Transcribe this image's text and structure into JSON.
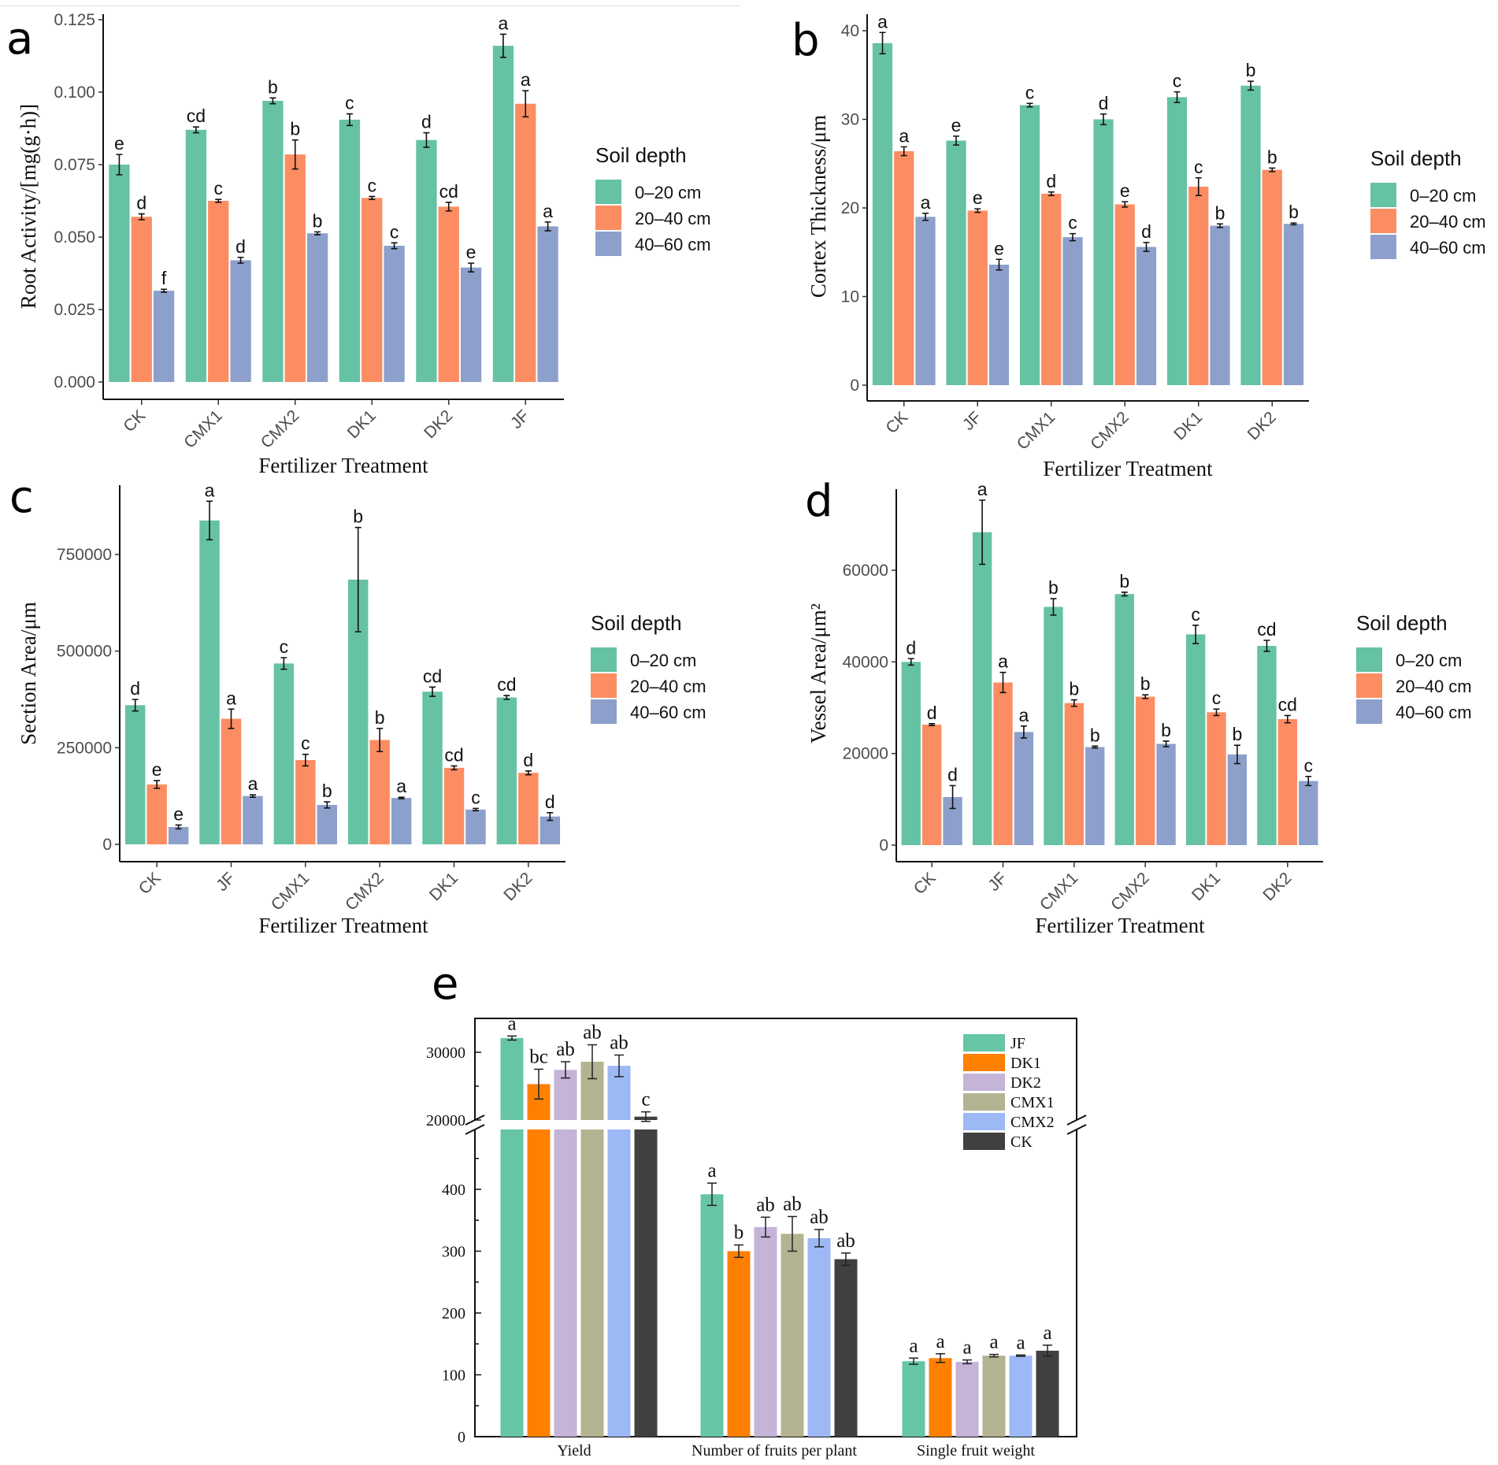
{
  "chart_data": [
    {
      "panel": "a",
      "type": "bar",
      "xlabel": "Fertilizer Treatment",
      "ylabel": "Root Activity/[mg(g·h)]",
      "categories": [
        "CK",
        "CMX1",
        "CMX2",
        "DK1",
        "DK2",
        "JF"
      ],
      "yticks": [
        0,
        0.025,
        0.05,
        0.075,
        0.1,
        0.125
      ],
      "tick_decimals": 3,
      "legend_title": "Soil depth",
      "series": [
        {
          "name": "0–20 cm",
          "color": "#66c2a5",
          "values": [
            0.075,
            0.087,
            0.097,
            0.0905,
            0.0835,
            0.116
          ],
          "errors": [
            0.0035,
            0.001,
            0.001,
            0.002,
            0.0025,
            0.004
          ],
          "letters": [
            "e",
            "cd",
            "b",
            "c",
            "d",
            "a"
          ]
        },
        {
          "name": "20–40 cm",
          "color": "#fc8d62",
          "values": [
            0.057,
            0.0625,
            0.0785,
            0.0635,
            0.0605,
            0.096
          ],
          "errors": [
            0.001,
            0.0005,
            0.005,
            0.0005,
            0.0015,
            0.0045
          ],
          "letters": [
            "d",
            "c",
            "b",
            "c",
            "cd",
            "a"
          ]
        },
        {
          "name": "40–60 cm",
          "color": "#8da0cb",
          "values": [
            0.0315,
            0.042,
            0.0513,
            0.047,
            0.0395,
            0.0537
          ],
          "errors": [
            0.0005,
            0.001,
            0.0005,
            0.001,
            0.0015,
            0.0015
          ],
          "letters": [
            "f",
            "d",
            "b",
            "c",
            "e",
            "a"
          ]
        }
      ]
    },
    {
      "panel": "b",
      "type": "bar",
      "xlabel": "Fertilizer Treatment",
      "ylabel": "Cortex Thickness/μm",
      "categories": [
        "CK",
        "JF",
        "CMX1",
        "CMX2",
        "DK1",
        "DK2"
      ],
      "yticks": [
        0,
        10,
        20,
        30,
        40
      ],
      "tick_decimals": 0,
      "legend_title": "Soil depth",
      "series": [
        {
          "name": "0–20 cm",
          "color": "#66c2a5",
          "values": [
            38.6,
            27.6,
            31.6,
            30.0,
            32.5,
            33.8
          ],
          "errors": [
            1.2,
            0.5,
            0.2,
            0.6,
            0.6,
            0.5
          ],
          "letters": [
            "a",
            "e",
            "c",
            "d",
            "c",
            "b"
          ]
        },
        {
          "name": "20–40 cm",
          "color": "#fc8d62",
          "values": [
            26.4,
            19.7,
            21.6,
            20.4,
            22.4,
            24.3
          ],
          "errors": [
            0.5,
            0.2,
            0.2,
            0.3,
            1.0,
            0.2
          ],
          "letters": [
            "a",
            "e",
            "d",
            "e",
            "c",
            "b"
          ]
        },
        {
          "name": "40–60 cm",
          "color": "#8da0cb",
          "values": [
            19.0,
            13.6,
            16.7,
            15.6,
            18.0,
            18.2
          ],
          "errors": [
            0.4,
            0.6,
            0.4,
            0.5,
            0.2,
            0.1
          ],
          "letters": [
            "a",
            "e",
            "c",
            "d",
            "b",
            "b"
          ]
        }
      ]
    },
    {
      "panel": "c",
      "type": "bar",
      "xlabel": "Fertilizer Treatment",
      "ylabel": "Section Area/μm",
      "categories": [
        "CK",
        "JF",
        "CMX1",
        "CMX2",
        "DK1",
        "DK2"
      ],
      "yticks": [
        0,
        250000,
        500000,
        750000
      ],
      "tick_decimals": 0,
      "legend_title": "Soil depth",
      "series": [
        {
          "name": "0–20 cm",
          "color": "#66c2a5",
          "values": [
            360000,
            838000,
            468000,
            685000,
            395000,
            380000
          ],
          "errors": [
            15000,
            50000,
            15000,
            135000,
            12000,
            5000
          ],
          "letters": [
            "d",
            "a",
            "c",
            "b",
            "cd",
            "cd"
          ]
        },
        {
          "name": "20–40 cm",
          "color": "#fc8d62",
          "values": [
            155000,
            325000,
            218000,
            270000,
            198000,
            185000
          ],
          "errors": [
            10000,
            25000,
            15000,
            30000,
            5000,
            5000
          ],
          "letters": [
            "e",
            "a",
            "c",
            "b",
            "cd",
            "d"
          ]
        },
        {
          "name": "40–60 cm",
          "color": "#8da0cb",
          "values": [
            45000,
            125000,
            102000,
            120000,
            90000,
            72000
          ],
          "errors": [
            5000,
            3000,
            8000,
            2000,
            3000,
            10000
          ],
          "letters": [
            "e",
            "a",
            "b",
            "a",
            "c",
            "d"
          ]
        }
      ]
    },
    {
      "panel": "d",
      "type": "bar",
      "xlabel": "Fertilizer Treatment",
      "ylabel": "Vessel Area/μm²",
      "categories": [
        "CK",
        "JF",
        "CMX1",
        "CMX2",
        "DK1",
        "DK2"
      ],
      "yticks": [
        0,
        20000,
        40000,
        60000
      ],
      "tick_decimals": 0,
      "legend_title": "Soil depth",
      "series": [
        {
          "name": "0–20 cm",
          "color": "#66c2a5",
          "values": [
            40000,
            68300,
            52000,
            54800,
            46000,
            43500
          ],
          "errors": [
            700,
            7000,
            1800,
            400,
            2000,
            1200
          ],
          "letters": [
            "d",
            "a",
            "b",
            "b",
            "c",
            "cd"
          ]
        },
        {
          "name": "20–40 cm",
          "color": "#fc8d62",
          "values": [
            26300,
            35500,
            31000,
            32400,
            29000,
            27500
          ],
          "errors": [
            200,
            2200,
            700,
            400,
            700,
            800
          ],
          "letters": [
            "d",
            "a",
            "b",
            "b",
            "c",
            "cd"
          ]
        },
        {
          "name": "40–60 cm",
          "color": "#8da0cb",
          "values": [
            10500,
            24700,
            21400,
            22100,
            19800,
            14000
          ],
          "errors": [
            2500,
            1300,
            200,
            600,
            2000,
            1000
          ],
          "letters": [
            "d",
            "a",
            "b",
            "b",
            "b",
            "c"
          ]
        }
      ]
    },
    {
      "panel": "e",
      "type": "bar",
      "xlabel": "",
      "ylabel": "",
      "categories": [
        "Yield",
        "Number of fruits per plant",
        "Single fruit weight"
      ],
      "yticks_lower": [
        0,
        100,
        200,
        300,
        400
      ],
      "yticks_upper": [
        20000,
        30000
      ],
      "axis_break": [
        497,
        20000
      ],
      "series": [
        {
          "name": "JF",
          "color": "#66c5a5",
          "values": [
            32100,
            392,
            122
          ],
          "errors": [
            300,
            18,
            5
          ],
          "letters": [
            "a",
            "a",
            "a"
          ]
        },
        {
          "name": "DK1",
          "color": "#ff8000",
          "values": [
            25300,
            300,
            127
          ],
          "errors": [
            2200,
            10,
            7
          ],
          "letters": [
            "bc",
            "b",
            "a"
          ]
        },
        {
          "name": "DK2",
          "color": "#c5b3d8",
          "values": [
            27400,
            339,
            121
          ],
          "errors": [
            1200,
            16,
            3
          ],
          "letters": [
            "ab",
            "ab",
            "a"
          ]
        },
        {
          "name": "CMX1",
          "color": "#b3b391",
          "values": [
            28600,
            328,
            131
          ],
          "errors": [
            2500,
            28,
            2
          ],
          "letters": [
            "ab",
            "ab",
            "a"
          ]
        },
        {
          "name": "CMX2",
          "color": "#9cb8f5",
          "values": [
            28000,
            321,
            131
          ],
          "errors": [
            1600,
            14,
            1
          ],
          "letters": [
            "ab",
            "ab",
            "a"
          ]
        },
        {
          "name": "CK",
          "color": "#404040",
          "values": [
            20500,
            287,
            139
          ],
          "errors": [
            700,
            10,
            9
          ],
          "letters": [
            "c",
            "ab",
            "a"
          ]
        }
      ]
    }
  ]
}
